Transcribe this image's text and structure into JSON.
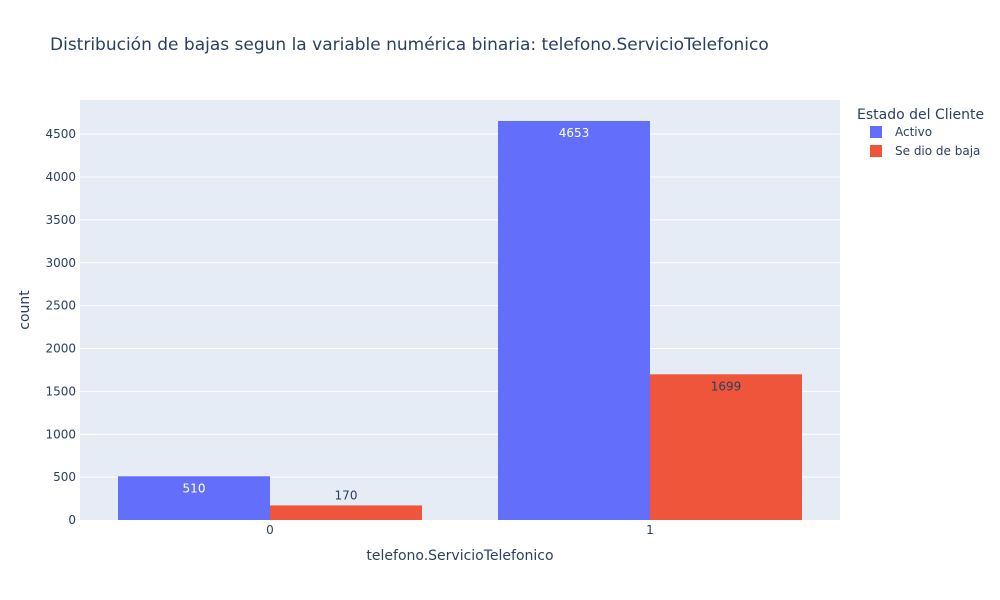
{
  "chart_data": {
    "type": "bar",
    "title": "Distribución de bajas segun la variable numérica binaria: telefono.ServicioTelefonico",
    "xlabel": "telefono.ServicioTelefonico",
    "ylabel": "count",
    "categories": [
      "0",
      "1"
    ],
    "series": [
      {
        "name": "Activo",
        "values": [
          510,
          4653
        ],
        "color": "#636efa",
        "label_color": "#ffffff"
      },
      {
        "name": "Se dio de baja",
        "values": [
          170,
          1699
        ],
        "color": "#ef553b",
        "label_color": "#2a3f5f"
      }
    ],
    "ylim": [
      0,
      4898
    ],
    "yticks": [
      0,
      500,
      1000,
      1500,
      2000,
      2500,
      3000,
      3500,
      4000,
      4500
    ],
    "grid": true,
    "barmode": "group",
    "legend": {
      "title": "Estado del Cliente",
      "position": "top-right"
    },
    "plot_background": "#e5ecf6"
  }
}
